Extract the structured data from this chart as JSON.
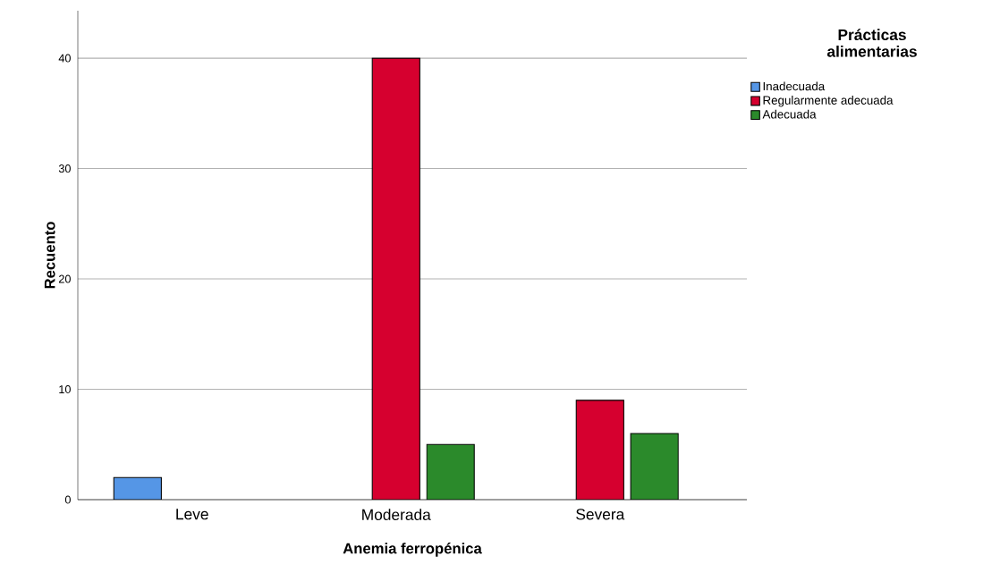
{
  "chart_data": {
    "type": "bar",
    "xlabel": "Anemia ferropénica",
    "ylabel": "Recuento",
    "legend_title": "Prácticas alimentarias",
    "categories": [
      "Leve",
      "Moderada",
      "Severa"
    ],
    "series": [
      {
        "name": "Inadecuada",
        "color": "#5596e6",
        "values": [
          2,
          null,
          null
        ]
      },
      {
        "name": "Regularmente adecuada",
        "color": "#d6002f",
        "values": [
          null,
          40,
          9
        ]
      },
      {
        "name": "Adecuada",
        "color": "#2b8a2b",
        "values": [
          null,
          5,
          6
        ]
      }
    ],
    "ylim": [
      0,
      44.3
    ],
    "yticks": [
      0,
      10,
      20,
      30,
      40
    ],
    "grid": "y",
    "legend": "top right"
  }
}
